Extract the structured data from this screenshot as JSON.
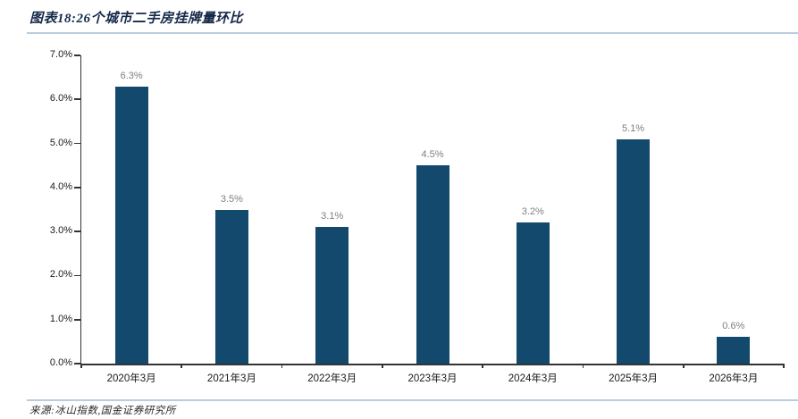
{
  "figure": {
    "title": "图表18:26个城市二手房挂牌量环比",
    "source": "来源:冰山指数,国金证券研究所"
  },
  "chart_data": {
    "type": "bar",
    "title": "26个城市二手房挂牌量环比",
    "categories": [
      "2020年3月",
      "2021年3月",
      "2022年3月",
      "2023年3月",
      "2024年3月",
      "2025年3月",
      "2026年3月"
    ],
    "values": [
      6.3,
      3.5,
      3.1,
      4.5,
      3.2,
      5.1,
      0.6
    ],
    "value_labels": [
      "6.3%",
      "3.5%",
      "3.1%",
      "4.5%",
      "3.2%",
      "5.1%",
      "0.6%"
    ],
    "xlabel": "",
    "ylabel": "",
    "ylim": [
      0,
      7
    ],
    "y_tick_step": 1,
    "y_tick_labels": [
      "0.0%",
      "1.0%",
      "2.0%",
      "3.0%",
      "4.0%",
      "5.0%",
      "6.0%",
      "7.0%"
    ],
    "grid": false,
    "legend": "none",
    "bar_color": "#12496d",
    "data_label_color": "#7f7f7f"
  },
  "colors": {
    "bar": "#12496d",
    "rule": "#b9cdde",
    "title_text": "#15294a",
    "axis_line": "#333333",
    "axis_label": "#1a1a1a",
    "data_label": "#7f7f7f"
  }
}
